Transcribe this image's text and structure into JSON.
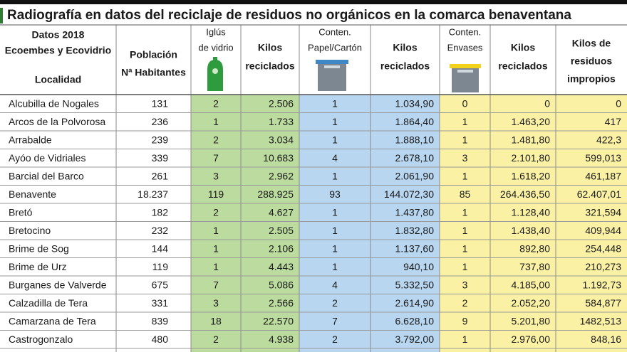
{
  "header": {
    "title": "Radiografía en datos del reciclaje de residuos no orgánicos en la comarca benaventana"
  },
  "table": {
    "columns": [
      {
        "lines": [
          "Datos 2018",
          "Ecoembes y Ecovidrio",
          "Localidad"
        ]
      },
      {
        "lines": [
          "Población",
          "Nª Habitantes"
        ]
      },
      {
        "lines": [
          "Iglús",
          "de vidrio"
        ]
      },
      {
        "lines": [
          "Kilos",
          "reciclados"
        ]
      },
      {
        "lines": [
          "Conten.",
          "Papel/Cartón"
        ]
      },
      {
        "lines": [
          "Kilos",
          "reciclados"
        ]
      },
      {
        "lines": [
          "Conten.",
          "Envases"
        ]
      },
      {
        "lines": [
          "Kilos",
          "reciclados"
        ]
      },
      {
        "lines": [
          "Kilos de",
          "residuos",
          "impropios"
        ]
      }
    ],
    "rows": [
      [
        "Alcubilla de Nogales",
        "131",
        "2",
        "2.506",
        "1",
        "1.034,90",
        "0",
        "0",
        "0"
      ],
      [
        "Arcos de la Polvorosa",
        "236",
        "1",
        "1.733",
        "1",
        "1.864,40",
        "1",
        "1.463,20",
        "417"
      ],
      [
        "Arrabalde",
        "239",
        "2",
        "3.034",
        "1",
        "1.888,10",
        "1",
        "1.481,80",
        "422,3"
      ],
      [
        "Ayóo de Vidriales",
        "339",
        "7",
        "10.683",
        "4",
        "2.678,10",
        "3",
        "2.101,80",
        "599,013"
      ],
      [
        "Barcial del Barco",
        "261",
        "3",
        "2.962",
        "1",
        "2.061,90",
        "1",
        "1.618,20",
        "461,187"
      ],
      [
        "Benavente",
        "18.237",
        "119",
        "288.925",
        "93",
        "144.072,30",
        "85",
        "264.436,50",
        "62.407,01"
      ],
      [
        "Bretó",
        "182",
        "2",
        "4.627",
        "1",
        "1.437,80",
        "1",
        "1.128,40",
        "321,594"
      ],
      [
        "Bretocino",
        "232",
        "1",
        "2.505",
        "1",
        "1.832,80",
        "1",
        "1.438,40",
        "409,944"
      ],
      [
        "Brime de Sog",
        "144",
        "1",
        "2.106",
        "1",
        "1.137,60",
        "1",
        "892,80",
        "254,448"
      ],
      [
        "Brime de Urz",
        "119",
        "1",
        "4.443",
        "1",
        "940,10",
        "1",
        "737,80",
        "210,273"
      ],
      [
        "Burganes de Valverde",
        "675",
        "7",
        "5.086",
        "4",
        "5.332,50",
        "3",
        "4.185,00",
        "1.192,73"
      ],
      [
        "Calzadilla de Tera",
        "331",
        "3",
        "2.566",
        "2",
        "2.614,90",
        "2",
        "2.052,20",
        "584,877"
      ],
      [
        "Camarzana de Tera",
        "839",
        "18",
        "22.570",
        "7",
        "6.628,10",
        "9",
        "5.201,80",
        "1482,513"
      ],
      [
        "Castrogonzalo",
        "480",
        "2",
        "4.938",
        "2",
        "3.792,00",
        "1",
        "2.976,00",
        "848,16"
      ]
    ]
  }
}
